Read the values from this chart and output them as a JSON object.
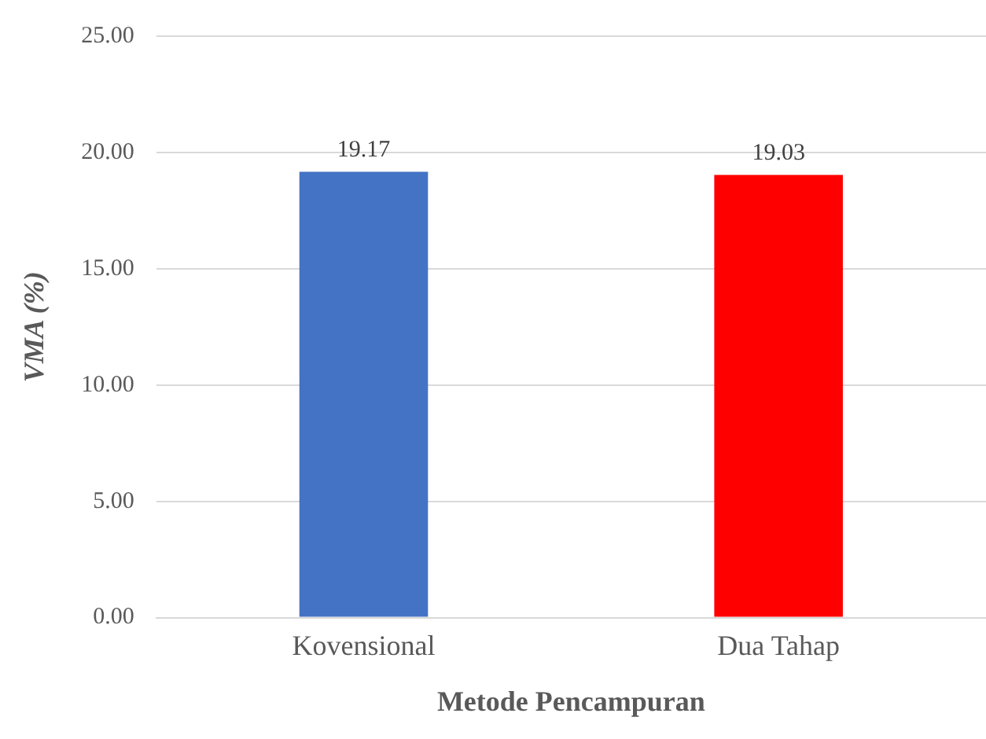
{
  "chart_data": {
    "type": "bar",
    "xlabel": "Metode Pencampuran",
    "ylabel": "VMA (%)",
    "categories": [
      "Kovensional",
      "Dua Tahap"
    ],
    "values": [
      19.17,
      19.03
    ],
    "colors": [
      "#4472c4",
      "#ff0000"
    ],
    "ylim": [
      0,
      25
    ],
    "yticks": [
      {
        "value": 0,
        "label": "0.00"
      },
      {
        "value": 5,
        "label": "5.00"
      },
      {
        "value": 10,
        "label": "10.00"
      },
      {
        "value": 15,
        "label": "15.00"
      },
      {
        "value": 20,
        "label": "20.00"
      },
      {
        "value": 25,
        "label": "25.00"
      }
    ],
    "grid": "y",
    "data_labels": true,
    "legend": false
  }
}
